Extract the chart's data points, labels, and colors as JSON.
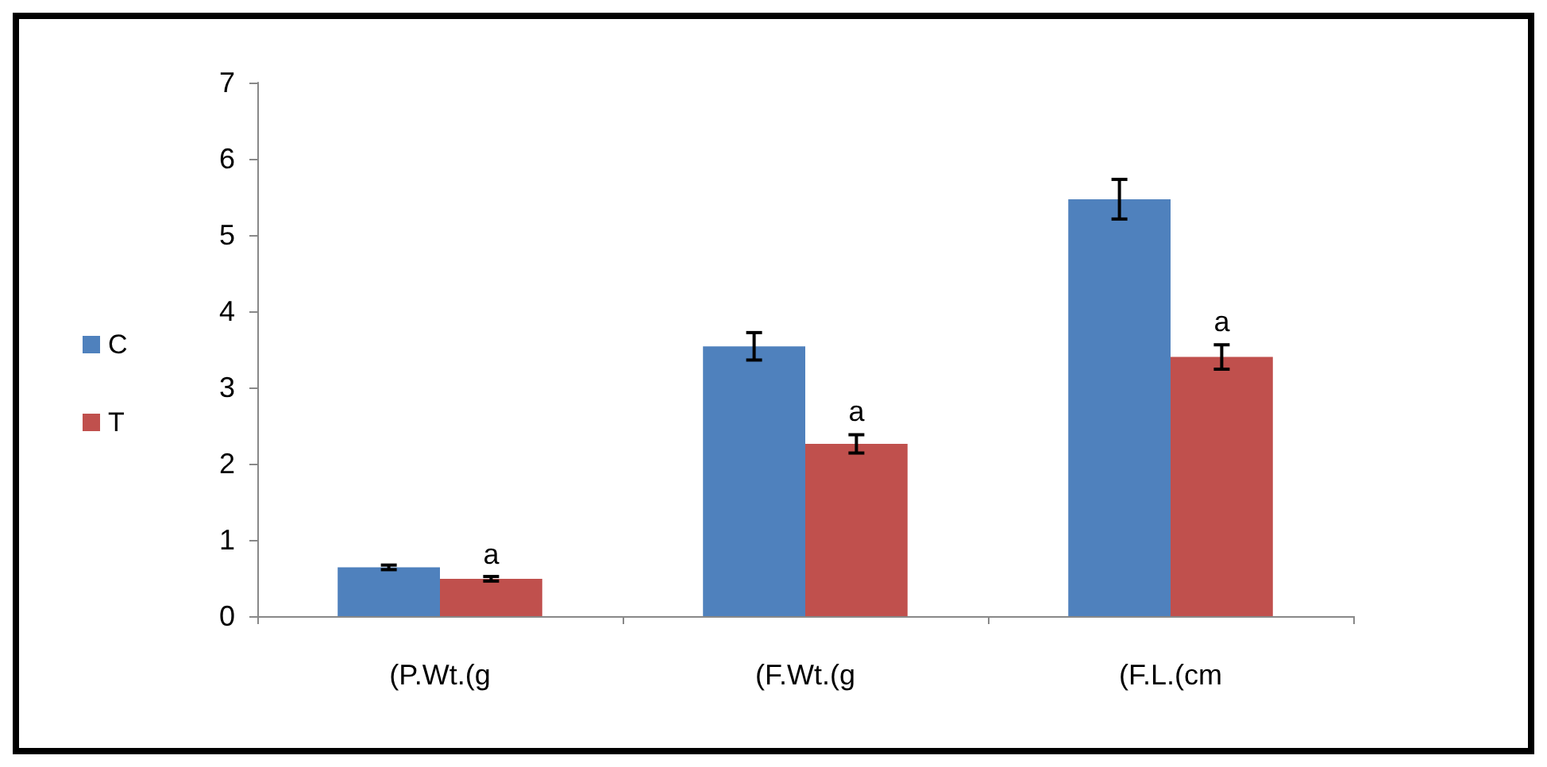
{
  "chart_data": {
    "type": "bar",
    "categories": [
      "(P.Wt.(g",
      "(F.Wt.(g",
      "(F.L.(cm"
    ],
    "series": [
      {
        "name": "C",
        "color": "#4f81bd",
        "values": [
          0.64,
          3.54,
          5.47
        ],
        "errors": [
          0.03,
          0.18,
          0.26
        ]
      },
      {
        "name": "T",
        "color": "#c0504d",
        "values": [
          0.49,
          2.26,
          3.4
        ],
        "errors": [
          0.03,
          0.12,
          0.16
        ]
      }
    ],
    "annotations": [
      {
        "text": "a",
        "x": "(P.Wt.(g",
        "y": 0.62
      },
      {
        "text": "a",
        "x": "(F.Wt.(g",
        "y": 2.5
      },
      {
        "text": "a",
        "x": "(F.L.(cm",
        "y": 3.68
      }
    ],
    "ylim": [
      0,
      7
    ],
    "yticks": [
      0,
      1,
      2,
      3,
      4,
      5,
      6,
      7
    ],
    "grid": false,
    "legend": "left"
  }
}
